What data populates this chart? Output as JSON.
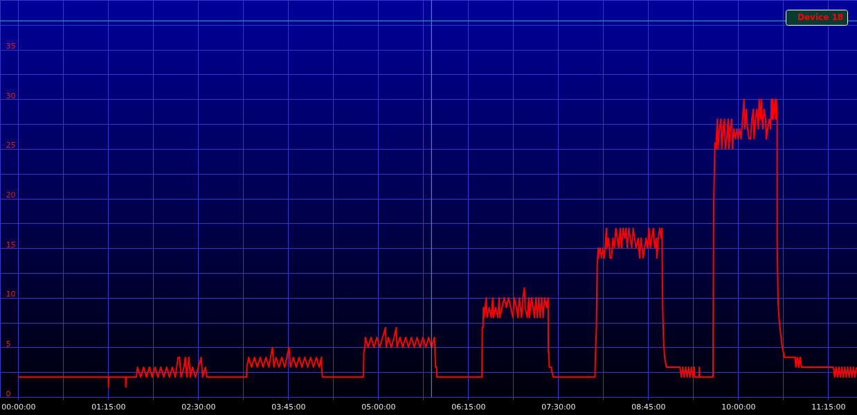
{
  "chart_data": {
    "type": "line",
    "x": [
      0,
      1.25,
      1.253,
      1.257,
      1.49,
      1.493,
      1.497,
      1.64,
      1.647,
      1.655,
      1.7,
      1.74,
      1.78,
      1.82,
      1.86,
      1.9,
      1.94,
      1.98,
      2.02,
      2.06,
      2.1,
      2.14,
      2.18,
      2.22,
      2.24,
      2.26,
      2.3,
      2.32,
      2.34,
      2.37,
      2.39,
      2.42,
      2.46,
      2.5,
      2.54,
      2.56,
      2.6,
      2.62,
      3.17,
      3.175,
      3.2,
      3.24,
      3.28,
      3.32,
      3.36,
      3.4,
      3.44,
      3.48,
      3.53,
      3.55,
      3.58,
      3.62,
      3.66,
      3.7,
      3.76,
      3.78,
      3.82,
      3.86,
      3.9,
      3.94,
      3.98,
      4.02,
      4.06,
      4.1,
      4.14,
      4.18,
      4.21,
      4.212,
      4.225,
      4.794,
      4.8,
      4.815,
      4.82,
      4.86,
      4.9,
      4.94,
      4.98,
      5.02,
      5.06,
      5.1,
      5.11,
      5.14,
      5.18,
      5.22,
      5.25,
      5.26,
      5.3,
      5.34,
      5.38,
      5.42,
      5.46,
      5.5,
      5.54,
      5.58,
      5.62,
      5.66,
      5.7,
      5.74,
      5.78,
      5.797,
      5.81,
      5.815,
      6.44,
      6.445,
      6.455,
      6.46,
      6.47,
      6.5,
      6.51,
      6.54,
      6.57,
      6.59,
      6.6,
      6.63,
      6.66,
      6.68,
      6.69,
      6.72,
      6.75,
      6.78,
      6.81,
      6.84,
      6.87,
      6.89,
      6.92,
      6.94,
      6.96,
      6.99,
      7.01,
      7.03,
      7.04,
      7.07,
      7.09,
      7.1,
      7.13,
      7.17,
      7.19,
      7.21,
      7.23,
      7.25,
      7.27,
      7.29,
      7.31,
      7.34,
      7.36,
      7.362,
      7.37,
      7.375,
      7.4,
      7.43,
      8.01,
      8.015,
      8.03,
      8.04,
      8.055,
      8.06,
      8.08,
      8.1,
      8.12,
      8.14,
      8.16,
      8.17,
      8.18,
      8.2,
      8.22,
      8.24,
      8.26,
      8.28,
      8.3,
      8.32,
      8.34,
      8.36,
      8.38,
      8.4,
      8.42,
      8.44,
      8.46,
      8.48,
      8.5,
      8.52,
      8.54,
      8.56,
      8.58,
      8.61,
      8.63,
      8.65,
      8.68,
      8.7,
      8.72,
      8.74,
      8.76,
      8.78,
      8.8,
      8.82,
      8.84,
      8.86,
      8.87,
      8.89,
      8.91,
      8.93,
      8.94,
      8.951,
      8.961,
      8.977,
      9.003,
      9.19,
      9.21,
      9.23,
      9.25,
      9.27,
      9.29,
      9.31,
      9.33,
      9.35,
      9.37,
      9.39,
      9.395,
      9.455,
      9.46,
      9.465,
      9.65,
      9.653,
      9.66,
      9.676,
      9.69,
      9.71,
      9.72,
      9.74,
      9.76,
      9.77,
      9.79,
      9.81,
      9.82,
      9.84,
      9.86,
      9.87,
      9.89,
      9.91,
      9.92,
      9.94,
      9.96,
      9.98,
      10.0,
      10.02,
      10.04,
      10.06,
      10.08,
      10.09,
      10.11,
      10.13,
      10.15,
      10.17,
      10.19,
      10.21,
      10.22,
      10.24,
      10.26,
      10.28,
      10.29,
      10.31,
      10.32,
      10.34,
      10.36,
      10.38,
      10.39,
      10.41,
      10.43,
      10.45,
      10.46,
      10.47,
      10.48,
      10.49,
      10.5,
      10.515,
      10.52,
      10.53,
      10.54,
      10.541,
      10.554,
      10.573,
      10.595,
      10.612,
      10.643,
      10.79,
      10.8,
      10.82,
      10.84,
      10.86,
      10.88,
      11.32,
      11.34,
      11.36,
      11.38,
      11.4,
      11.42,
      11.44,
      11.46,
      11.48,
      11.5,
      11.52,
      11.54,
      11.56,
      11.58,
      11.6,
      11.62,
      11.64
    ],
    "series": [
      {
        "name": "Device 18",
        "color": "#ff0000",
        "values": [
          2,
          2,
          1,
          2,
          2,
          1,
          2,
          2,
          2.5,
          3,
          2,
          3,
          2,
          3,
          2,
          3,
          2,
          3,
          2,
          3,
          2,
          3,
          2,
          4,
          4,
          2,
          3,
          4,
          2,
          4,
          2,
          3,
          2,
          3,
          4,
          2,
          3,
          2,
          2,
          3,
          4,
          3,
          4,
          3,
          4,
          3,
          4,
          3,
          5,
          3,
          4,
          3,
          4,
          3,
          5,
          3,
          4,
          3,
          4,
          3,
          4,
          3,
          4,
          3,
          4,
          3,
          4,
          3,
          2,
          2,
          4.6,
          5,
          6,
          5,
          6,
          5,
          6,
          5,
          6,
          7,
          5,
          6,
          5,
          6,
          7,
          5,
          6,
          5,
          6,
          5,
          6,
          5,
          6,
          5,
          6,
          5,
          6,
          5,
          6,
          3,
          3,
          2,
          2,
          7,
          7,
          9,
          8,
          10,
          8,
          9,
          8,
          10,
          8,
          9,
          8,
          10,
          8,
          9,
          10,
          9,
          10,
          9,
          8,
          10,
          9,
          8,
          10,
          8,
          10,
          11,
          9,
          8,
          10,
          8,
          10,
          8,
          10,
          8,
          10,
          8,
          10,
          8,
          10,
          9,
          10,
          4.5,
          4.5,
          3,
          3,
          2,
          2,
          3.8,
          7,
          13,
          15,
          14,
          15,
          14,
          15,
          14,
          16,
          17,
          15,
          16,
          14,
          14,
          16,
          15,
          17,
          16,
          15,
          17,
          15,
          17,
          16,
          17,
          15,
          17,
          16,
          15,
          17,
          16,
          15,
          16,
          14,
          16,
          14,
          15,
          16,
          15,
          17,
          15,
          16,
          17,
          15,
          16,
          14,
          16,
          17,
          16,
          17,
          9.1,
          6,
          4,
          3,
          3,
          2,
          3,
          2,
          3,
          2,
          3,
          2,
          3,
          2,
          3,
          2,
          2,
          3,
          2,
          2,
          9.5,
          19.6,
          25.6,
          25,
          28,
          25,
          27,
          28,
          25,
          27,
          28,
          25,
          26,
          28,
          25,
          27,
          28,
          25,
          27,
          26,
          27,
          26,
          27,
          26,
          28,
          30,
          27,
          29,
          27,
          26,
          26,
          28,
          29,
          26,
          28,
          29,
          27,
          30,
          28,
          30,
          27,
          29,
          28,
          26,
          27,
          28,
          27,
          30,
          28,
          30,
          28,
          29,
          30,
          28,
          30,
          28,
          15.6,
          9.5,
          7.4,
          6,
          5,
          4,
          4,
          3,
          4,
          3,
          4,
          3,
          3,
          2,
          3,
          2,
          3,
          2,
          3,
          2,
          3,
          2,
          3,
          2,
          3,
          2,
          3,
          2,
          3
        ]
      }
    ],
    "xlim": [
      -0.254,
      11.65
    ],
    "xticks": [
      {
        "value": 0,
        "label": "00:00:00"
      },
      {
        "value": 0.625,
        "label": null
      },
      {
        "value": 1.25,
        "label": "01:15:00"
      },
      {
        "value": 1.875,
        "label": null
      },
      {
        "value": 2.5,
        "label": "02:30:00"
      },
      {
        "value": 3.125,
        "label": null
      },
      {
        "value": 3.75,
        "label": "03:45:00"
      },
      {
        "value": 4.375,
        "label": null
      },
      {
        "value": 5,
        "label": "05:00:00"
      },
      {
        "value": 5.625,
        "label": null
      },
      {
        "value": 6.25,
        "label": "06:15:00"
      },
      {
        "value": 6.875,
        "label": null
      },
      {
        "value": 7.5,
        "label": "07:30:00"
      },
      {
        "value": 8.125,
        "label": null
      },
      {
        "value": 8.75,
        "label": "08:45:00"
      },
      {
        "value": 9.375,
        "label": null
      },
      {
        "value": 10,
        "label": "10:00:00"
      },
      {
        "value": 10.625,
        "label": null
      },
      {
        "value": 11.25,
        "label": "11:15:00"
      }
    ],
    "ylim": [
      0,
      40
    ],
    "yticks": [
      0,
      {
        "value": 2.5,
        "label": null
      },
      5,
      {
        "value": 7.5,
        "label": null
      },
      10,
      {
        "value": 12.5,
        "label": null
      },
      15,
      {
        "value": 17.5,
        "label": null
      },
      20,
      {
        "value": 22.5,
        "label": null
      },
      25,
      {
        "value": 27.5,
        "label": null
      },
      30,
      {
        "value": 32.5,
        "label": null
      },
      35,
      {
        "value": 37.5,
        "label": null
      }
    ],
    "ref_lines": [
      {
        "axis": "y",
        "value": 37.9,
        "color": "#1f9fa3"
      },
      {
        "axis": "x",
        "value": 5.74,
        "color": "#1f9fa3"
      }
    ],
    "grid": true,
    "legend": "top right"
  }
}
